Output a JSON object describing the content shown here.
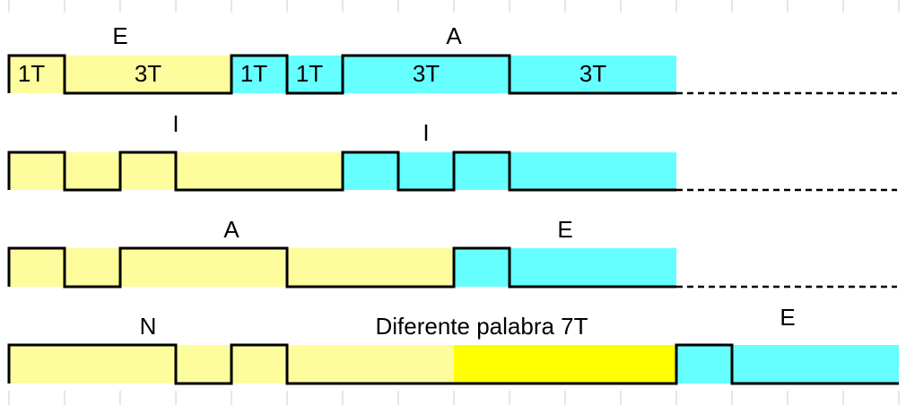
{
  "rows": [
    {
      "labels": [
        "E",
        "A"
      ],
      "segments": [
        "1T",
        "3T",
        "1T",
        "1T",
        "3T",
        "3T"
      ]
    },
    {
      "labels": [
        "I",
        "I"
      ]
    },
    {
      "labels": [
        "A",
        "E"
      ]
    },
    {
      "labels": [
        "N",
        "Diferente palabra 7T",
        "E"
      ]
    }
  ]
}
